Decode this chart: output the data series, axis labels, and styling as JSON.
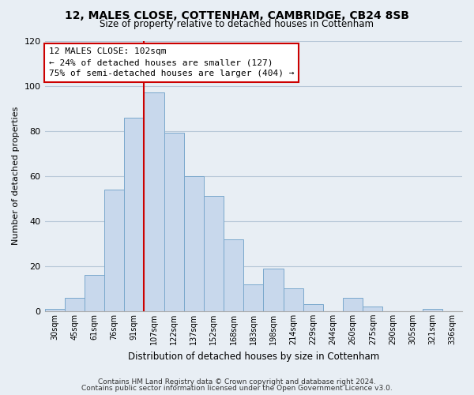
{
  "title": "12, MALES CLOSE, COTTENHAM, CAMBRIDGE, CB24 8SB",
  "subtitle": "Size of property relative to detached houses in Cottenham",
  "xlabel": "Distribution of detached houses by size in Cottenham",
  "ylabel": "Number of detached properties",
  "bar_color": "#c8d8ec",
  "bar_edge_color": "#7aa8cc",
  "categories": [
    "30sqm",
    "45sqm",
    "61sqm",
    "76sqm",
    "91sqm",
    "107sqm",
    "122sqm",
    "137sqm",
    "152sqm",
    "168sqm",
    "183sqm",
    "198sqm",
    "214sqm",
    "229sqm",
    "244sqm",
    "260sqm",
    "275sqm",
    "290sqm",
    "305sqm",
    "321sqm",
    "336sqm"
  ],
  "values": [
    1,
    6,
    16,
    54,
    86,
    97,
    79,
    60,
    51,
    32,
    12,
    19,
    10,
    3,
    0,
    6,
    2,
    0,
    0,
    1,
    0
  ],
  "ylim": [
    0,
    120
  ],
  "yticks": [
    0,
    20,
    40,
    60,
    80,
    100,
    120
  ],
  "vline_x": 4.5,
  "vline_color": "#cc0000",
  "annotation_title": "12 MALES CLOSE: 102sqm",
  "annotation_line1": "← 24% of detached houses are smaller (127)",
  "annotation_line2": "75% of semi-detached houses are larger (404) →",
  "annotation_box_color": "#ffffff",
  "annotation_box_edge": "#cc0000",
  "footer1": "Contains HM Land Registry data © Crown copyright and database right 2024.",
  "footer2": "Contains public sector information licensed under the Open Government Licence v3.0.",
  "background_color": "#e8eef4",
  "plot_background_color": "#e8eef4",
  "grid_color": "#b8c8d8"
}
